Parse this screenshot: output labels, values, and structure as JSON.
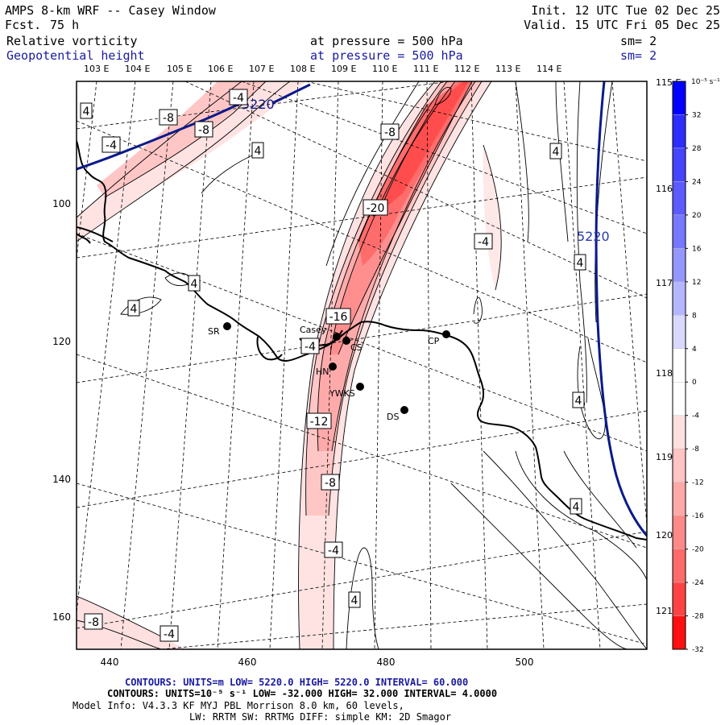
{
  "header": {
    "model": "AMPS 8-km WRF -- Casey Window",
    "fcst_label": "Fcst.",
    "fcst_value": "75 h",
    "init": "Init. 12 UTC Tue 02 Dec 25",
    "valid": "Valid. 15 UTC Fri 05 Dec 25",
    "field1": "Relative vorticity",
    "field2": "Geopotential height",
    "pressure1": "at pressure =  500 hPa",
    "pressure2": "at pressure =  500 hPa",
    "sm1": "sm= 2",
    "sm2": "sm= 2"
  },
  "lon_labels": [
    "103 E",
    "104 E",
    "105 E",
    "106 E",
    "107 E",
    "108 E",
    "109 E",
    "110 E",
    "111 E",
    "112 E",
    "113 E",
    "114 E"
  ],
  "lat_labels": [
    "115 E",
    "116 E",
    "117 E",
    "118 E",
    "119 E",
    "120 E",
    "121 E"
  ],
  "x_ticks": [
    "440",
    "460",
    "480",
    "500"
  ],
  "y_ticks": [
    "100",
    "120",
    "140",
    "160"
  ],
  "colorbar": {
    "unit": "10⁻⁵ s⁻¹",
    "labels": [
      "32",
      "28",
      "24",
      "20",
      "16",
      "12",
      "8",
      "4",
      "0",
      "-4",
      "-8",
      "-12",
      "-16",
      "-20",
      "-24",
      "-28",
      "-32"
    ],
    "colors": [
      "#0000ff",
      "#2d2dff",
      "#4545ff",
      "#5b5bff",
      "#7777ff",
      "#9696ff",
      "#b6b6ff",
      "#d9d9ff",
      "#ffffff",
      "#ffffff",
      "#ffe0e0",
      "#ffc4c4",
      "#ffa8a8",
      "#ff8888",
      "#ff6a6a",
      "#ff4343",
      "#ff1010"
    ]
  },
  "contour_labels": {
    "height": [
      "5220",
      "5220"
    ],
    "vort": [
      "4",
      "-4",
      "-8",
      "-8",
      "-4",
      "4",
      "-8",
      "-20",
      "4",
      "-4",
      "4",
      "4",
      "4",
      "-16",
      "-4",
      "4",
      "-12",
      "-8",
      "4",
      "-4",
      "4",
      "-8",
      "-4"
    ]
  },
  "stations": [
    "SR",
    "Casey",
    "CS",
    "HN",
    "YWKS",
    "CP",
    "DS"
  ],
  "footer": {
    "line1": "CONTOURS:  UNITS=m  LOW=  5220.0          HIGH=  5220.0       INTERVAL=   60.000",
    "line2": "CONTOURS:  UNITS=10⁻⁵ s⁻¹   LOW= -32.000       HIGH=  32.000      INTERVAL=   4.0000",
    "line3": "Model Info: V4.3.3    KF      MYJ PBL  Morrison           8.0 km,  60 levels,",
    "line4": "LW: RRTM SW: RRTMG   DIFF: simple KM: 2D Smagor"
  },
  "colors": {
    "height_contour": "#0a1a8a",
    "title_blue": "#1a1aa0"
  }
}
